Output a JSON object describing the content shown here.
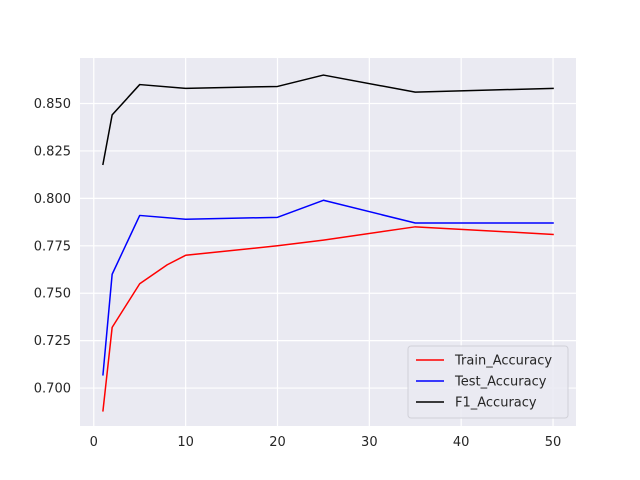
{
  "chart_data": {
    "type": "line",
    "title": "",
    "xlabel": "",
    "ylabel": "",
    "xlim": [
      -1.5,
      52.5
    ],
    "ylim": [
      0.68,
      0.675
    ],
    "y_range": [
      0.68,
      0.874
    ],
    "x_ticks": [
      0,
      10,
      20,
      30,
      40,
      50
    ],
    "y_ticks": [
      0.7,
      0.725,
      0.75,
      0.775,
      0.8,
      0.825,
      0.85
    ],
    "grid": true,
    "legend_position": "lower-right",
    "background": "#eaeaf2",
    "series": [
      {
        "name": "Train_Accuracy",
        "color": "#ff0000",
        "x": [
          1,
          2,
          5,
          8,
          10,
          20,
          25,
          35,
          50
        ],
        "y": [
          0.688,
          0.732,
          0.755,
          0.765,
          0.77,
          0.775,
          0.778,
          0.785,
          0.781
        ]
      },
      {
        "name": "Test_Accuracy",
        "color": "#0000ff",
        "x": [
          1,
          2,
          5,
          10,
          20,
          25,
          35,
          50
        ],
        "y": [
          0.707,
          0.76,
          0.791,
          0.789,
          0.79,
          0.799,
          0.787,
          0.787
        ]
      },
      {
        "name": "F1_Accuracy",
        "color": "#000000",
        "x": [
          1,
          2,
          5,
          10,
          20,
          25,
          35,
          50
        ],
        "y": [
          0.818,
          0.844,
          0.86,
          0.858,
          0.859,
          0.865,
          0.856,
          0.858
        ]
      }
    ]
  }
}
